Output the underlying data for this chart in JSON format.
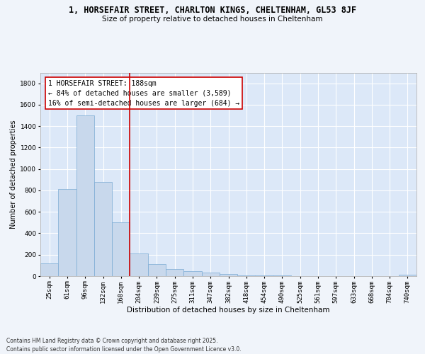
{
  "title1": "1, HORSEFAIR STREET, CHARLTON KINGS, CHELTENHAM, GL53 8JF",
  "title2": "Size of property relative to detached houses in Cheltenham",
  "xlabel": "Distribution of detached houses by size in Cheltenham",
  "ylabel": "Number of detached properties",
  "bar_color": "#c8d8ec",
  "bar_edge_color": "#7aaad4",
  "background_color": "#dce8f8",
  "grid_color": "#ffffff",
  "vline_color": "#cc0000",
  "vline_x_index": 5,
  "annotation_text": "1 HORSEFAIR STREET: 188sqm\n← 84% of detached houses are smaller (3,589)\n16% of semi-detached houses are larger (684) →",
  "annotation_box_facecolor": "#ffffff",
  "annotation_box_edgecolor": "#cc0000",
  "categories": [
    "25sqm",
    "61sqm",
    "96sqm",
    "132sqm",
    "168sqm",
    "204sqm",
    "239sqm",
    "275sqm",
    "311sqm",
    "347sqm",
    "382sqm",
    "418sqm",
    "454sqm",
    "490sqm",
    "525sqm",
    "561sqm",
    "597sqm",
    "633sqm",
    "668sqm",
    "704sqm",
    "740sqm"
  ],
  "values": [
    120,
    810,
    1500,
    880,
    500,
    210,
    110,
    65,
    45,
    30,
    22,
    8,
    5,
    4,
    3,
    2,
    2,
    1,
    1,
    1,
    10
  ],
  "ylim": [
    0,
    1900
  ],
  "yticks": [
    0,
    200,
    400,
    600,
    800,
    1000,
    1200,
    1400,
    1600,
    1800
  ],
  "footer": "Contains HM Land Registry data © Crown copyright and database right 2025.\nContains public sector information licensed under the Open Government Licence v3.0.",
  "fig_facecolor": "#f0f4fa",
  "title1_fontsize": 8.5,
  "title2_fontsize": 7.5,
  "xlabel_fontsize": 7.5,
  "ylabel_fontsize": 7,
  "tick_fontsize": 6.5,
  "annot_fontsize": 7,
  "footer_fontsize": 5.5
}
